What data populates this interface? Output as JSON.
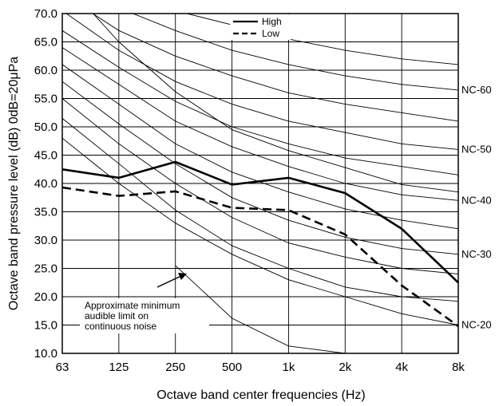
{
  "chart_data": {
    "type": "line",
    "xlabel": "Octave band center frequencies (Hz)",
    "ylabel": "Octave band pressure level (dB) 0dB=20μPa",
    "x_categories": [
      "63",
      "125",
      "250",
      "500",
      "1k",
      "2k",
      "4k",
      "8k"
    ],
    "y_ticks": [
      "10.0",
      "15.0",
      "20.0",
      "25.0",
      "30.0",
      "35.0",
      "40.0",
      "45.0",
      "50.0",
      "55.0",
      "60.0",
      "65.0",
      "70.0"
    ],
    "ylim": [
      10,
      70
    ],
    "grid": true,
    "legend": {
      "placement": "top-center",
      "entries": [
        {
          "label": "High",
          "style": "solid"
        },
        {
          "label": "Low",
          "style": "dashed"
        }
      ]
    },
    "series": [
      {
        "name": "High",
        "style": "solid",
        "color": "#000000",
        "values": [
          42.5,
          41.0,
          43.8,
          39.8,
          41.0,
          38.3,
          32.0,
          22.5
        ]
      },
      {
        "name": "Low",
        "style": "dashed",
        "color": "#000000",
        "values": [
          39.3,
          37.8,
          38.6,
          35.7,
          35.3,
          31.0,
          22.0,
          14.8
        ]
      }
    ],
    "nc_curves": [
      {
        "values": [
          51.5,
          43.5,
          35.3,
          29.0,
          25.0,
          21.7,
          20.0,
          19.2
        ]
      },
      {
        "label": "NC-20",
        "values": [
          48.0,
          40.0,
          33.0,
          27.5,
          23.0,
          20.0,
          17.0,
          15.0
        ]
      },
      {
        "values": [
          55.0,
          47.0,
          40.0,
          34.0,
          29.5,
          27.0,
          25.0,
          24.0
        ]
      },
      {
        "label": "NC-30",
        "values": [
          58.0,
          50.5,
          43.5,
          37.5,
          33.5,
          30.5,
          28.5,
          27.5
        ]
      },
      {
        "values": [
          61.0,
          54.0,
          47.0,
          42.0,
          38.5,
          35.5,
          33.5,
          32.0
        ]
      },
      {
        "label": "NC-40",
        "values": [
          64.0,
          57.5,
          51.0,
          46.5,
          43.0,
          40.0,
          38.0,
          37.0
        ]
      },
      {
        "values": [
          67.0,
          60.5,
          54.5,
          50.0,
          47.0,
          44.5,
          43.0,
          41.5
        ]
      },
      {
        "label": "NC-50",
        "values": [
          70.5,
          63.5,
          58.0,
          54.0,
          51.0,
          49.0,
          47.0,
          46.0
        ]
      },
      {
        "values": [
          73.5,
          67.0,
          62.5,
          59.0,
          56.0,
          54.0,
          52.5,
          51.0
        ]
      },
      {
        "label": "NC-60",
        "values": [
          77.0,
          71.0,
          67.0,
          63.5,
          61.0,
          59.0,
          57.5,
          56.5
        ]
      },
      {
        "values": [
          null,
          74.5,
          70.5,
          68.0,
          65.5,
          63.5,
          62.0,
          61.0
        ]
      },
      {
        "values": [
          76.0,
          65.0,
          56.2,
          49.5,
          45.8,
          42.8,
          39.8,
          38.5
        ]
      }
    ],
    "hearing_limit": {
      "values": [
        null,
        null,
        25.5,
        16.2,
        11.3,
        10.0,
        null,
        null
      ],
      "annotation": [
        "Approximate minimum",
        "audible limit on",
        "continuous noise"
      ]
    }
  }
}
